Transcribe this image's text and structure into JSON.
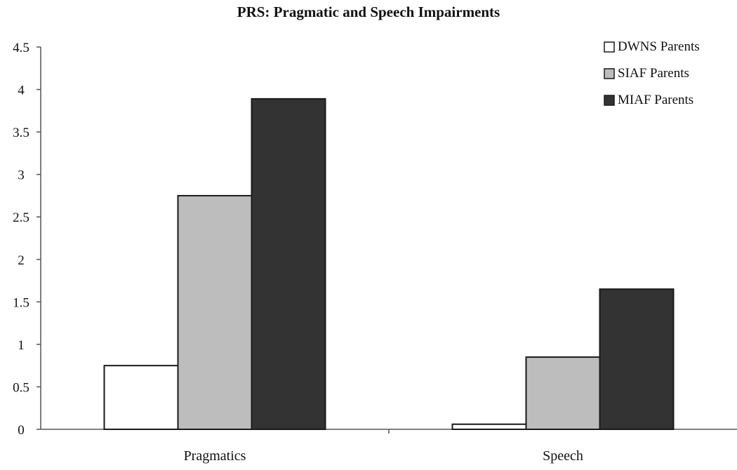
{
  "chart_data": {
    "type": "bar",
    "title": "PRS: Pragmatic and Speech Impairments",
    "xlabel": "",
    "ylabel": "",
    "categories": [
      "Pragmatics",
      "Speech"
    ],
    "series": [
      {
        "name": "DWNS Parents",
        "values": [
          0.75,
          0.06
        ],
        "color": "#ffffff"
      },
      {
        "name": "SIAF Parents",
        "values": [
          2.75,
          0.85
        ],
        "color": "#bdbdbd"
      },
      {
        "name": "MIAF Parents",
        "values": [
          3.89,
          1.65
        ],
        "color": "#333333"
      }
    ],
    "ylim": [
      0,
      4.5
    ],
    "yticks": [
      "0",
      "0.5",
      "1",
      "1.5",
      "2",
      "2.5",
      "3",
      "3.5",
      "4",
      "4.5"
    ],
    "grid": false,
    "legend_position": "top-right"
  }
}
